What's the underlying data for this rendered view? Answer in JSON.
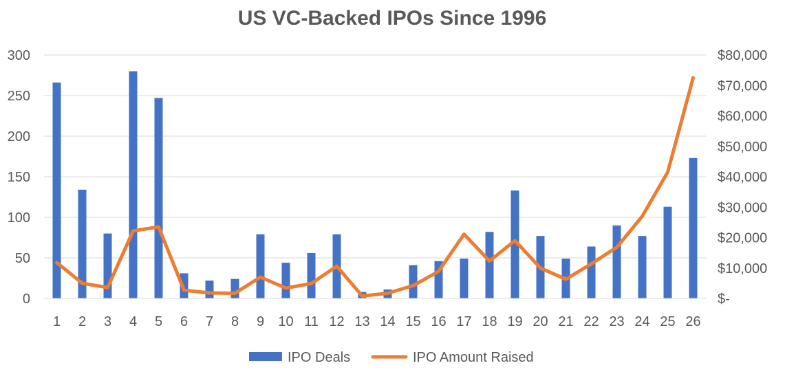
{
  "chart_data": {
    "type": "bar",
    "title": "US VC-Backed IPOs Since 1996",
    "categories": [
      "1",
      "2",
      "3",
      "4",
      "5",
      "6",
      "7",
      "8",
      "9",
      "10",
      "11",
      "12",
      "13",
      "14",
      "15",
      "16",
      "17",
      "18",
      "19",
      "20",
      "21",
      "22",
      "23",
      "24",
      "25",
      "26"
    ],
    "series": [
      {
        "name": "IPO Deals",
        "type": "bar",
        "axis": "left",
        "color": "#4472C4",
        "values": [
          266,
          134,
          80,
          280,
          247,
          31,
          22,
          24,
          79,
          44,
          56,
          79,
          8,
          11,
          41,
          46,
          49,
          82,
          133,
          77,
          49,
          64,
          90,
          77,
          113,
          173
        ]
      },
      {
        "name": "IPO Amount Raised",
        "type": "line",
        "axis": "right",
        "color": "#ED7D31",
        "values": [
          11800,
          5000,
          3600,
          22200,
          23500,
          2700,
          1800,
          1700,
          7000,
          3400,
          4900,
          10600,
          800,
          1700,
          4200,
          8900,
          21100,
          12300,
          19000,
          10000,
          6300,
          11400,
          16800,
          27000,
          41500,
          72500
        ]
      }
    ],
    "y_left": {
      "ylim": [
        0,
        300
      ],
      "ticks": [
        0,
        50,
        100,
        150,
        200,
        250,
        300
      ],
      "tick_labels": [
        "0",
        "50",
        "100",
        "150",
        "200",
        "250",
        "300"
      ]
    },
    "y_right": {
      "ylim": [
        0,
        80000
      ],
      "ticks": [
        0,
        10000,
        20000,
        30000,
        40000,
        50000,
        60000,
        70000,
        80000
      ],
      "tick_labels": [
        "$-",
        "$10,000",
        "$20,000",
        "$30,000",
        "$40,000",
        "$50,000",
        "$60,000",
        "$70,000",
        "$80,000"
      ]
    },
    "grid": true,
    "legend": "bottom",
    "gridline_color": "#D9D9D9",
    "text_color": "#595959"
  }
}
